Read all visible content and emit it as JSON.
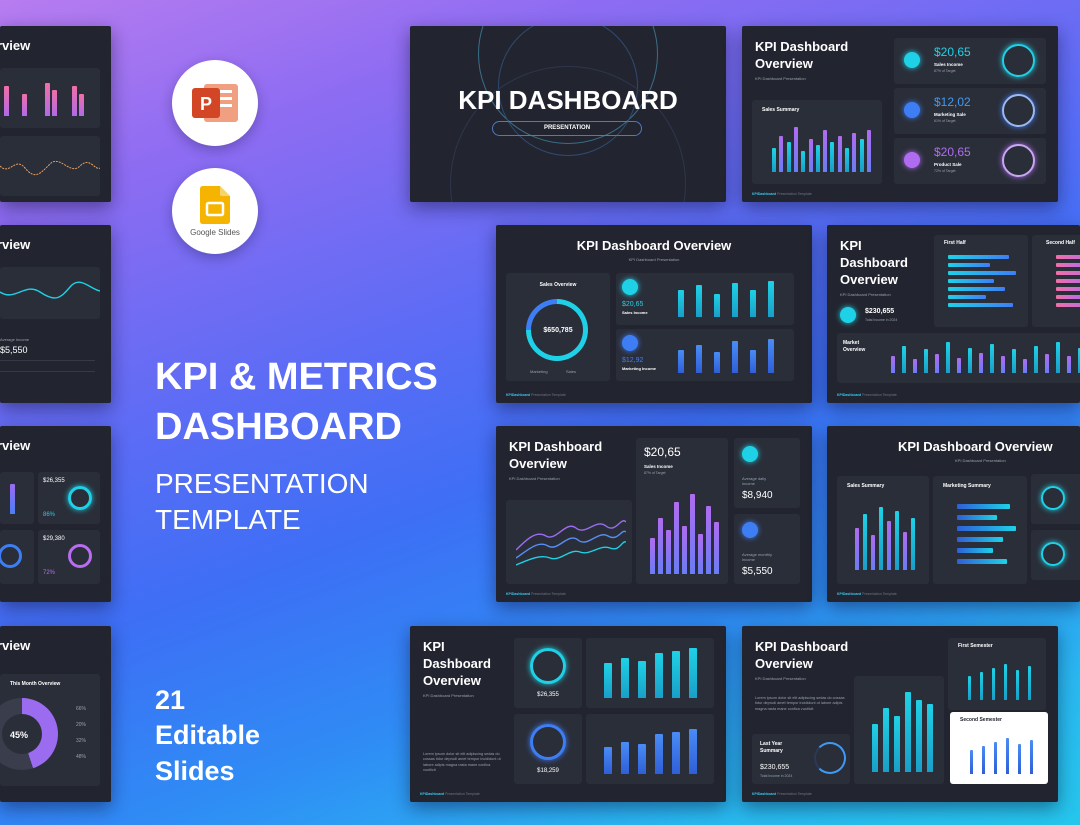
{
  "headline": {
    "line1": "KPI & METRICS",
    "line2": "DASHBOARD",
    "sub1": "PRESENTATION",
    "sub2": "TEMPLATE",
    "count": "21",
    "count_l1": "Editable",
    "count_l2": "Slides"
  },
  "apps": {
    "powerpoint_icon": "powerpoint-icon",
    "google_slides_label": "Google Slides"
  },
  "colors": {
    "cyan": "#1fd1e6",
    "purple": "#9b6cf0",
    "pink": "#f06fa8",
    "blue": "#3e7ef5"
  },
  "cover": {
    "title": "KPI DASHBOARD",
    "pill": "PRESENTATION"
  },
  "s2": {
    "title1": "KPI Dashboard",
    "title2": "Overview",
    "subtitle": "KPI Dashboard Presentation",
    "chart_title": "Sales Summary",
    "k1_value": "$20,65",
    "k1_label": "Sales Income",
    "k1_sub": "87% of Target",
    "k2_value": "$12,02",
    "k2_label": "Marketing Sale",
    "k2_sub": "61% of Target",
    "k3_value": "$20,65",
    "k3_label": "Product Sale",
    "k3_sub": "72% of Target"
  },
  "s3": {
    "title": "KPI Dashboard Overview",
    "subtitle": "KPI Dashboard Presentation",
    "donut_title": "Sales Overview",
    "donut_value": "$650,785",
    "legend1": "Marketing",
    "legend2": "Sales",
    "k1_value": "$20,65",
    "k1_label": "Sales Income",
    "k2_value": "$12,92",
    "k2_label": "Marketing Income"
  },
  "s4": {
    "title1": "KPI",
    "title2": "Dashboard",
    "title3": "Overview",
    "subtitle": "KPI Dashboard Presentation",
    "value": "$230,655",
    "value_sub": "Total Income in 2024",
    "first_half": "First Half",
    "second_half": "Second Half",
    "market1": "Market",
    "market2": "Overview"
  },
  "s5": {
    "title1": "KPI Dashboard",
    "title2": "Overview",
    "subtitle": "KPI Dashboard Presentation",
    "value": "$20,65",
    "value_label": "Sales Income",
    "value_sub": "87% of Target",
    "k1_label1": "Average daily",
    "k1_label2": "income",
    "k1_value": "$8,940",
    "k2_label1": "Average monthly",
    "k2_label2": "income",
    "k2_value": "$5,550"
  },
  "s6": {
    "title": "KPI Dashboard Overview",
    "subtitle": "KPI Dashboard Presentation",
    "chart1": "Sales Summary",
    "chart2": "Marketing Summary"
  },
  "s7": {
    "title1": "KPI",
    "title2": "Dashboard",
    "title3": "Overview",
    "subtitle": "KPI Dashboard Presentation",
    "v1": "$26,355",
    "v2": "$18,259",
    "body": "Lorem ipsum dolor sit elit adipiscing sedas do cossas tidur deprudi amet tempor incididunt ut labore adipis magna rasta mane confica vuotlicit"
  },
  "s8": {
    "title1": "KPI Dashboard",
    "title2": "Overview",
    "subtitle": "KPI Dashboard Presentation",
    "body": "Lorem ipsum dolor sit elit adipiscing sedas do cossas tidur deprudi amet tempor incididunt ut labore adipis magna rasta mane confica vuotlicit",
    "last_year1": "Last Year",
    "last_year2": "Summary",
    "value": "$230,655",
    "value_sub": "Total Income in 2024",
    "first_sem": "First Semester",
    "second_sem": "Second Semester"
  },
  "left": {
    "l1_title": "rview",
    "l2_title": "rview",
    "l2_caption": "Average Income",
    "l2_value": "$5,550",
    "l3_title": "rview",
    "l3_v1": "$26,355",
    "l3_v2": "$29,380",
    "l3_p1": "86%",
    "l3_p2": "72%",
    "l4_title": "rview",
    "l4_chart": "This Month Overview",
    "l4_center": "45%",
    "l4_legend": [
      "66%",
      "20%",
      "32%",
      "48%"
    ]
  },
  "footer": {
    "brand": "KPIDashboard",
    "rest": "Presentation Template"
  }
}
